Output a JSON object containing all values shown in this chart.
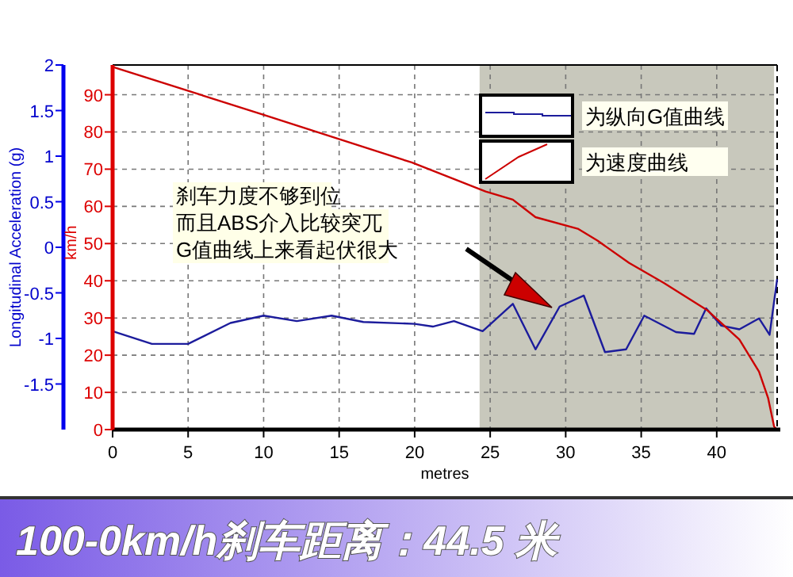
{
  "chart_data": {
    "type": "line",
    "title": "100-0km/h刹车距离：44.5 米",
    "xlabel": "metres",
    "ylabel": "Longitudinal Acceleration (g)",
    "y2label": "km/h",
    "xlim": [
      0,
      44
    ],
    "xticks": [
      0,
      5,
      10,
      15,
      20,
      25,
      30,
      35,
      40
    ],
    "ylim": [
      -2,
      2
    ],
    "yticks": [
      -1.5,
      -1,
      -0.5,
      0,
      0.5,
      1,
      1.5,
      2
    ],
    "y2lim": [
      0,
      98
    ],
    "y2ticks": [
      0,
      10,
      20,
      30,
      40,
      50,
      60,
      70,
      80,
      90
    ],
    "grid": true,
    "legend": "top right",
    "series": [
      {
        "name": "为纵向G值曲线",
        "color": "#1c1c9c",
        "x": [
          0,
          2.6,
          5,
          7.8,
          10,
          12.2,
          14.5,
          16.6,
          20,
          21.2,
          22.6,
          24.5,
          26.5,
          28,
          29.6,
          31.2,
          32.6,
          34,
          35.2,
          37.3,
          38.5,
          39.3,
          40.3,
          41.5,
          42.8,
          43.5,
          44
        ],
        "values": [
          -0.92,
          -1.06,
          -1.06,
          -0.83,
          -0.75,
          -0.81,
          -0.75,
          -0.82,
          -0.84,
          -0.87,
          -0.81,
          -0.92,
          -0.62,
          -1.12,
          -0.65,
          -0.53,
          -1.15,
          -1.12,
          -0.75,
          -0.93,
          -0.95,
          -0.67,
          -0.86,
          -0.9,
          -0.78,
          -0.96,
          -0.35
        ]
      },
      {
        "name": "为速度曲线",
        "color": "#cc0000",
        "axis": "y2",
        "x": [
          0,
          10,
          19.8,
          24.7,
          26.5,
          28,
          30.8,
          32.1,
          34.2,
          36.5,
          39.4,
          41.5,
          42.8,
          43.4,
          43.8,
          44
        ],
        "values": [
          97.5,
          84.6,
          71.8,
          64,
          61.8,
          57.1,
          54,
          50.8,
          44.8,
          39.4,
          32,
          24.2,
          15.6,
          8.5,
          0.8,
          0
        ]
      }
    ],
    "bands": [
      {
        "axis": "x",
        "from": 24.3,
        "to": 43.8,
        "color": "#c8c8bc"
      }
    ],
    "annotations": [
      "刹车力度不够到位",
      "而且ABS介入比较突兀",
      "G值曲线上来看起伏很大"
    ]
  }
}
